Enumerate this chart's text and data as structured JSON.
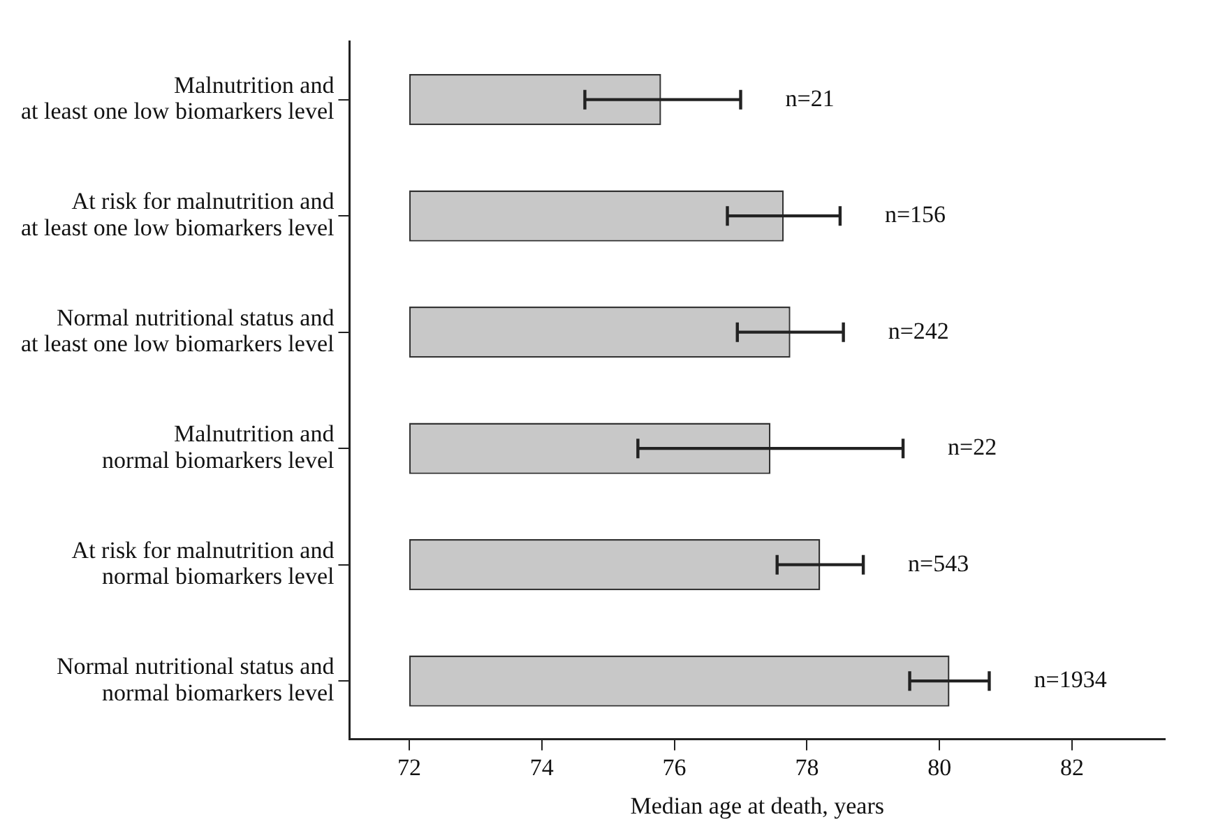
{
  "chart_data": {
    "type": "bar",
    "orientation": "horizontal",
    "xlabel": "Median age at death, years",
    "categories": [
      "Malnutrition and\nat least one low biomarkers level",
      "At risk for malnutrition and\nat least one low biomarkers level",
      "Normal nutritional status and\nat least one low biomarkers level",
      "Malnutrition and\nnormal biomarkers level",
      "At risk for malnutrition and\nnormal biomarkers level",
      "Normal nutritional status and\nnormal biomarkers level"
    ],
    "base": [
      72,
      72,
      72,
      72,
      72,
      72
    ],
    "values": [
      3.8,
      5.65,
      5.75,
      5.45,
      6.2,
      8.15
    ],
    "errors": [
      [
        74.65,
        77.0
      ],
      [
        76.8,
        78.5
      ],
      [
        76.95,
        78.55
      ],
      [
        75.45,
        79.45
      ],
      [
        77.55,
        78.85
      ],
      [
        79.55,
        80.75
      ]
    ],
    "color": "#c8c8c8",
    "xlim": [
      71.1,
      83.4
    ],
    "xticks": [
      72,
      74,
      76,
      78,
      80,
      82
    ],
    "grid": false,
    "annotations": [
      "n=21",
      "n=156",
      "n=242",
      "n=22",
      "n=543",
      "n=1934"
    ]
  }
}
